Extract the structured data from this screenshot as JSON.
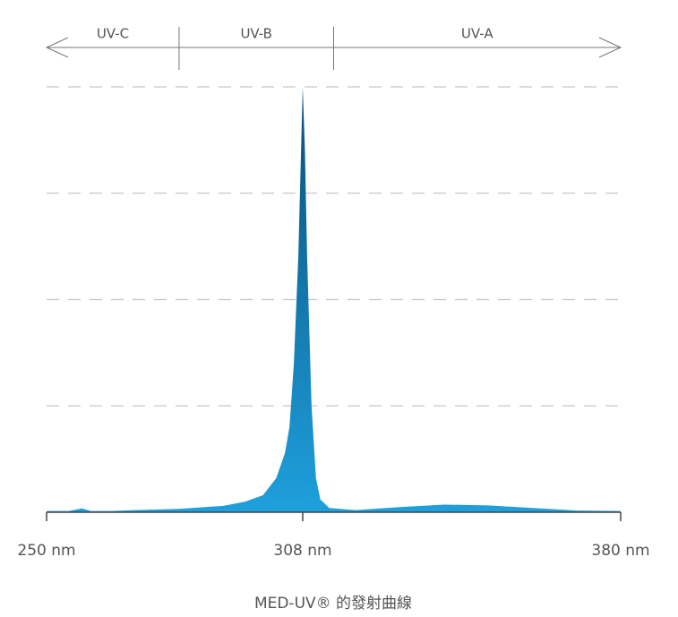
{
  "chart_data": {
    "type": "area",
    "title": "MED-UV® 的發射曲線",
    "bands": [
      {
        "label": "UV-C",
        "start": 250,
        "end": 280
      },
      {
        "label": "UV-B",
        "start": 280,
        "end": 315
      },
      {
        "label": "UV-A",
        "start": 315,
        "end": 380
      }
    ],
    "x": [
      250,
      255,
      258,
      260,
      265,
      270,
      280,
      290,
      295,
      299,
      302,
      304,
      305,
      306,
      307,
      307.5,
      308,
      308.5,
      309,
      310,
      311,
      312,
      314,
      320,
      330,
      340,
      350,
      360,
      370,
      380
    ],
    "values": [
      0.3,
      0.3,
      0.9,
      0.3,
      0.3,
      0.5,
      0.8,
      1.5,
      2.5,
      4,
      8,
      14,
      20,
      35,
      60,
      80,
      100,
      85,
      60,
      25,
      8,
      3,
      1,
      0.5,
      1.2,
      1.8,
      1.6,
      1.0,
      0.4,
      0.3
    ],
    "color": "#1ea0dc",
    "xlim": [
      250,
      380
    ],
    "xticks": [
      {
        "value": 250,
        "label": "250 nm"
      },
      {
        "value": 308,
        "label": "308 nm"
      },
      {
        "value": 380,
        "label": "380 nm"
      }
    ],
    "ylim": [
      0,
      100
    ],
    "yticks": [
      25,
      50,
      75,
      100
    ],
    "grid": true
  }
}
